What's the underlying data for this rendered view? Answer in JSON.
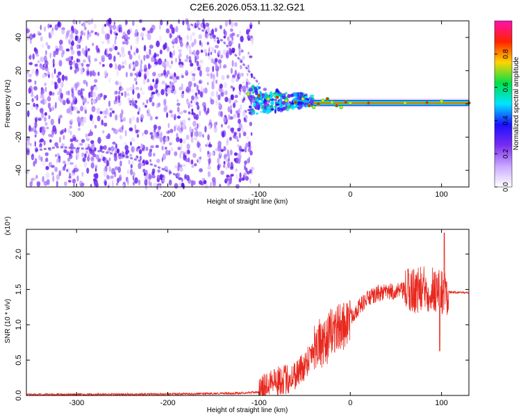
{
  "title": "C2E6.2026.053.11.32.G21",
  "chart_data": [
    {
      "type": "heatmap",
      "title": "C2E6.2026.053.11.32.G21",
      "xlabel": "Height of straight line (km)",
      "ylabel": "Frequency (Hz)",
      "xlim": [
        -355,
        130
      ],
      "ylim": [
        -50,
        50
      ],
      "x_ticks": [
        -300,
        -200,
        -100,
        0,
        100
      ],
      "y_ticks": [
        -40,
        -20,
        0,
        20,
        40
      ],
      "grid": false,
      "colorbar": {
        "label": "Normalized spectral amplitude",
        "range": [
          0.0,
          1.0
        ],
        "ticks": [
          "0.0",
          "0.2",
          "0.4",
          "0.6",
          "0.8"
        ],
        "colors": [
          "#ffffff",
          "#c9a8ff",
          "#7a2cf0",
          "#1a10ff",
          "#00e5ff",
          "#00e04a",
          "#ffd400",
          "#ff2200",
          "#ff10b0"
        ]
      },
      "regions": {
        "noise_field_x": [
          -355,
          -107
        ],
        "scintillation_cluster_x": [
          -112,
          -40
        ],
        "carrier_line_x": [
          -40,
          130
        ],
        "carrier_frequency": 0.6
      },
      "faint_tracks": [
        {
          "x": [
            -175,
            -140,
            -120,
            -100
          ],
          "y": [
            48,
            38,
            26,
            12
          ]
        },
        {
          "x": [
            -345,
            -320,
            -290,
            -250,
            -215,
            -190
          ],
          "y": [
            -28,
            -26,
            -27,
            -31,
            -37,
            -43
          ]
        }
      ],
      "carrier_ridge": {
        "x": [
          -112,
          -100,
          -90,
          -80,
          -70,
          -60,
          -52,
          -45,
          -40,
          -35,
          -30,
          -25,
          -20,
          -15,
          -10,
          -5,
          0,
          20,
          60,
          84,
          100,
          130
        ],
        "y": [
          6,
          5,
          3,
          4,
          2,
          1,
          3,
          -1,
          -2,
          0,
          2,
          3,
          1,
          -1,
          -2,
          1,
          0.6,
          0.6,
          0.6,
          0.8,
          1.5,
          0.6
        ]
      }
    },
    {
      "type": "line",
      "xlabel": "Height of straight line (km)",
      "ylabel": "SNR (10 * v/v)",
      "y_multiplier": "(x10⁴)",
      "xlim": [
        -355,
        130
      ],
      "ylim": [
        0,
        2.35
      ],
      "x_ticks": [
        -300,
        -200,
        -100,
        0,
        100
      ],
      "y_ticks": [
        "0.0",
        "0.5",
        "1.0",
        "1.5",
        "2.0"
      ],
      "grid": false,
      "color": "#e8281e",
      "series": [
        {
          "x": [
            -355,
            -300,
            -250,
            -200,
            -160,
            -130,
            -110,
            -100,
            -95,
            -90,
            -85,
            -80,
            -75,
            -70,
            -65,
            -60,
            -55,
            -50,
            -45,
            -40,
            -35,
            -30,
            -25,
            -20,
            -15,
            -10,
            -5,
            0,
            5,
            10,
            15,
            20,
            25,
            30,
            40,
            50,
            60,
            70,
            80,
            90,
            95,
            100,
            103,
            106,
            110,
            120,
            130
          ],
          "y": [
            0.01,
            0.015,
            0.015,
            0.02,
            0.025,
            0.03,
            0.04,
            0.05,
            0.1,
            0.2,
            0.25,
            0.18,
            0.24,
            0.22,
            0.25,
            0.3,
            0.36,
            0.42,
            0.55,
            0.68,
            0.78,
            0.65,
            0.8,
            0.92,
            0.95,
            0.96,
            1.02,
            1.1,
            1.18,
            1.26,
            1.32,
            1.38,
            1.4,
            1.44,
            1.46,
            1.47,
            1.48,
            1.49,
            1.5,
            1.51,
            1.5,
            1.48,
            1.45,
            1.47,
            1.46,
            1.46,
            1.45
          ]
        }
      ],
      "noise_amplitude": [
        {
          "x": [
            -100,
            -80
          ],
          "amp": 0.2
        },
        {
          "x": [
            -80,
            -40
          ],
          "amp": 0.22
        },
        {
          "x": [
            -40,
            0
          ],
          "amp": 0.35
        },
        {
          "x": [
            0,
            60
          ],
          "amp": 0.12
        },
        {
          "x": [
            60,
            108
          ],
          "amp": 0.34
        }
      ],
      "peak": {
        "x": 103,
        "y": 2.3
      },
      "trough": {
        "x": 98,
        "y": 0.63
      }
    }
  ]
}
